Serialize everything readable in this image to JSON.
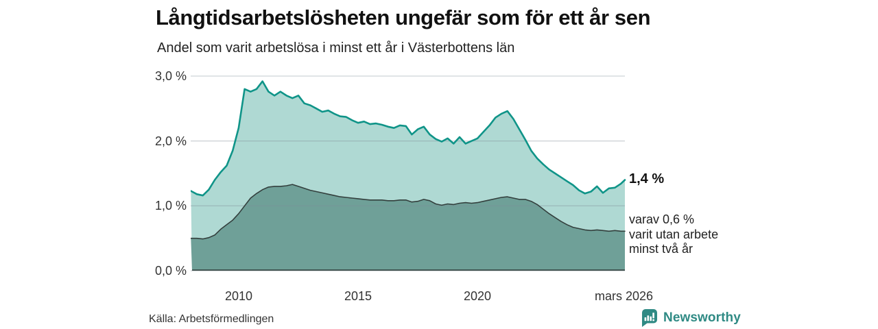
{
  "title": "Långtidsarbetslösheten ungefär som för ett år sen",
  "subtitle": "Andel som varit arbetslösa i minst ett år i Västerbottens län",
  "source": "Källa: Arbetsförmedlingen",
  "branding": {
    "name": "Newsworthy",
    "icon": "newsworthy-bar-chart-bubble-icon",
    "color": "#2f8a84"
  },
  "annotations": {
    "latest_value_label": "1,4 %",
    "sub_note": "varav 0,6 %\nvarit utan arbete\nminst två år"
  },
  "colors": {
    "series1_fill": "#afd9d3",
    "series1_line": "#0f9488",
    "series2_fill": "#6fa098",
    "series2_line": "#333f3d",
    "gridline": "rgba(125,140,150,0.38)",
    "text_dark": "#111111",
    "text_gray": "#333333"
  },
  "chart_data": {
    "type": "area",
    "title": "Långtidsarbetslösheten ungefär som för ett år sen",
    "xlabel": "",
    "ylabel": "Andel som varit arbetslösa i minst ett år (%)",
    "grid": "horizontal",
    "legend": "none (direct labels at right edge of chart)",
    "xlim": [
      2008.05,
      2026.17
    ],
    "ylim": [
      0,
      3.0
    ],
    "yticks": [
      {
        "value": 3.0,
        "label": "3,0 %"
      },
      {
        "value": 2.0,
        "label": "2,0 %"
      },
      {
        "value": 1.0,
        "label": "1,0 %"
      },
      {
        "value": 0.0,
        "label": "0,0 %"
      }
    ],
    "xticks": [
      {
        "value": 2010,
        "label": "2010"
      },
      {
        "value": 2015,
        "label": "2015"
      },
      {
        "value": 2020,
        "label": "2020"
      },
      {
        "value": 2026.17,
        "label": "mars 2026"
      }
    ],
    "x": [
      2008.0,
      2008.25,
      2008.5,
      2008.75,
      2009.0,
      2009.25,
      2009.5,
      2009.75,
      2010.0,
      2010.25,
      2010.5,
      2010.75,
      2011.0,
      2011.25,
      2011.5,
      2011.75,
      2012.0,
      2012.25,
      2012.5,
      2012.75,
      2013.0,
      2013.25,
      2013.5,
      2013.75,
      2014.0,
      2014.25,
      2014.5,
      2014.75,
      2015.0,
      2015.25,
      2015.5,
      2015.75,
      2016.0,
      2016.25,
      2016.5,
      2016.75,
      2017.0,
      2017.25,
      2017.5,
      2017.75,
      2018.0,
      2018.25,
      2018.5,
      2018.75,
      2019.0,
      2019.25,
      2019.5,
      2019.75,
      2020.0,
      2020.25,
      2020.5,
      2020.75,
      2021.0,
      2021.25,
      2021.5,
      2021.75,
      2022.0,
      2022.25,
      2022.5,
      2022.75,
      2023.0,
      2023.25,
      2023.5,
      2023.75,
      2024.0,
      2024.25,
      2024.5,
      2024.75,
      2025.0,
      2025.25,
      2025.5,
      2025.75,
      2026.0,
      2026.17
    ],
    "series": [
      {
        "name": "Andel som varit arbetslösa minst ett år",
        "end_value_pct": 1.4,
        "values": [
          1.23,
          1.18,
          1.16,
          1.25,
          1.4,
          1.52,
          1.62,
          1.85,
          2.2,
          2.8,
          2.76,
          2.8,
          2.92,
          2.76,
          2.7,
          2.76,
          2.7,
          2.66,
          2.7,
          2.58,
          2.55,
          2.5,
          2.45,
          2.47,
          2.42,
          2.38,
          2.37,
          2.32,
          2.28,
          2.3,
          2.26,
          2.27,
          2.25,
          2.22,
          2.2,
          2.24,
          2.23,
          2.1,
          2.18,
          2.22,
          2.1,
          2.03,
          1.99,
          2.04,
          1.96,
          2.06,
          1.96,
          2.0,
          2.04,
          2.14,
          2.24,
          2.36,
          2.42,
          2.46,
          2.34,
          2.18,
          2.02,
          1.85,
          1.73,
          1.64,
          1.56,
          1.5,
          1.44,
          1.38,
          1.32,
          1.24,
          1.19,
          1.22,
          1.3,
          1.2,
          1.27,
          1.28,
          1.34,
          1.4
        ]
      },
      {
        "name": "varav varit utan arbete minst två år",
        "end_value_pct": 0.6,
        "values": [
          0.5,
          0.5,
          0.49,
          0.51,
          0.55,
          0.64,
          0.71,
          0.78,
          0.88,
          1.0,
          1.12,
          1.19,
          1.25,
          1.29,
          1.3,
          1.3,
          1.31,
          1.33,
          1.3,
          1.27,
          1.24,
          1.22,
          1.2,
          1.18,
          1.16,
          1.14,
          1.13,
          1.12,
          1.11,
          1.1,
          1.09,
          1.09,
          1.09,
          1.08,
          1.08,
          1.09,
          1.09,
          1.06,
          1.07,
          1.1,
          1.08,
          1.03,
          1.01,
          1.03,
          1.02,
          1.04,
          1.05,
          1.04,
          1.05,
          1.07,
          1.09,
          1.11,
          1.13,
          1.14,
          1.12,
          1.1,
          1.1,
          1.07,
          1.02,
          0.95,
          0.88,
          0.82,
          0.76,
          0.71,
          0.67,
          0.65,
          0.63,
          0.62,
          0.63,
          0.62,
          0.61,
          0.62,
          0.61,
          0.61
        ]
      }
    ]
  }
}
